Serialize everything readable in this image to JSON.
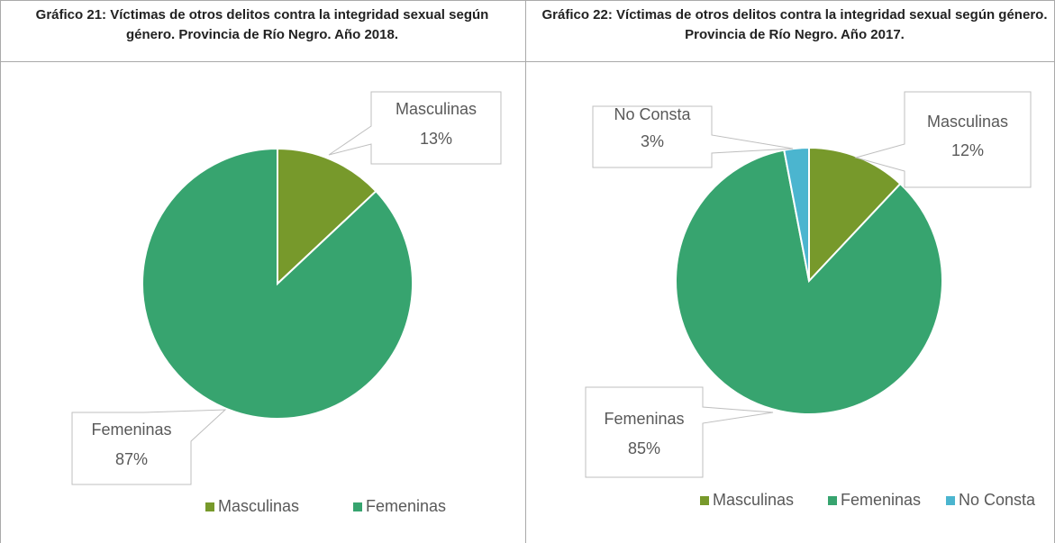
{
  "chart_data": [
    {
      "type": "pie",
      "title": "Gráfico 21: Víctimas de otros delitos contra la integridad sexual según género. Provincia de Río Negro. Año 2018.",
      "categories": [
        "Masculinas",
        "Femeninas"
      ],
      "values": [
        13,
        87
      ],
      "value_labels": [
        "13%",
        "87%"
      ],
      "colors": [
        "#77992b",
        "#37a46f"
      ],
      "legend": "bottom"
    },
    {
      "type": "pie",
      "title": "Gráfico 22: Víctimas de otros delitos contra la integridad sexual según género. Provincia de Río Negro. Año 2017.",
      "categories": [
        "Masculinas",
        "Femeninas",
        "No Consta"
      ],
      "values": [
        12,
        85,
        3
      ],
      "value_labels": [
        "12%",
        "85%",
        "3%"
      ],
      "colors": [
        "#77992b",
        "#37a46f",
        "#4bb5cf"
      ],
      "legend": "bottom"
    }
  ]
}
